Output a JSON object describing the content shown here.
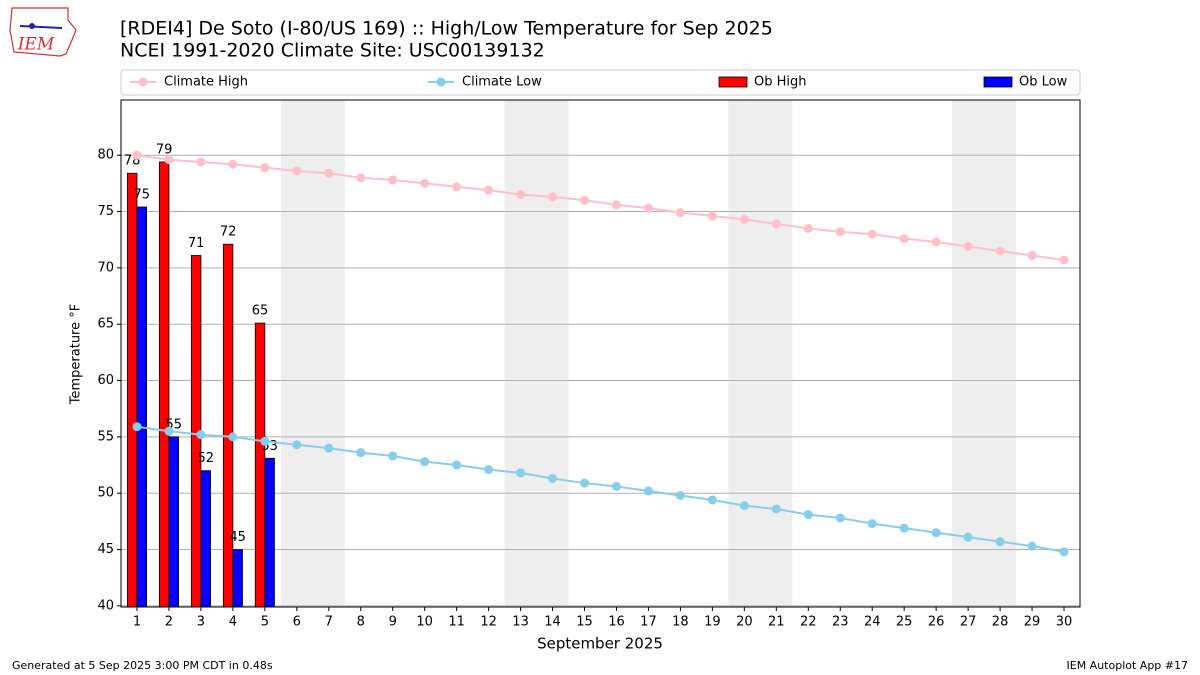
{
  "logo_text": "IEM",
  "footer_left": "Generated at 5 Sep 2025 3:00 PM CDT in 0.48s",
  "footer_right": "IEM Autoplot App #17",
  "chart_data": {
    "type": "bar_line",
    "title": "[RDEI4] De Soto (I-80/US 169) :: High/Low Temperature for Sep 2025",
    "subtitle": "NCEI 1991-2020 Climate Site: USC00139132",
    "xlabel": "September 2025",
    "ylabel": "Temperature °F",
    "x": [
      1,
      2,
      3,
      4,
      5,
      6,
      7,
      8,
      9,
      10,
      11,
      12,
      13,
      14,
      15,
      16,
      17,
      18,
      19,
      20,
      21,
      22,
      23,
      24,
      25,
      26,
      27,
      28,
      29,
      30
    ],
    "xlim": [
      0.5,
      30.5
    ],
    "xticks": [
      1,
      2,
      3,
      4,
      5,
      6,
      7,
      8,
      9,
      10,
      11,
      12,
      13,
      14,
      15,
      16,
      17,
      18,
      19,
      20,
      21,
      22,
      23,
      24,
      25,
      26,
      27,
      28,
      29,
      30
    ],
    "ylim": [
      39.9,
      84.9
    ],
    "yticks": [
      40,
      45,
      50,
      55,
      60,
      65,
      70,
      75,
      80
    ],
    "grid": "y",
    "shaded_spans": [
      [
        5.5,
        7.5
      ],
      [
        12.5,
        14.5
      ],
      [
        19.5,
        21.5
      ],
      [
        26.5,
        28.5
      ]
    ],
    "shade_color": "#eeeeee",
    "series": [
      {
        "name": "Climate High",
        "kind": "line",
        "color": "#ffc0cb",
        "values": [
          80.0,
          79.6,
          79.4,
          79.2,
          78.9,
          78.6,
          78.4,
          78.0,
          77.8,
          77.5,
          77.2,
          76.9,
          76.5,
          76.3,
          76.0,
          75.6,
          75.3,
          74.9,
          74.6,
          74.3,
          73.9,
          73.5,
          73.2,
          73.0,
          72.6,
          72.3,
          71.9,
          71.5,
          71.1,
          70.7
        ]
      },
      {
        "name": "Climate Low",
        "kind": "line",
        "color": "#87ceeb",
        "values": [
          55.9,
          55.5,
          55.2,
          55.0,
          54.6,
          54.3,
          54.0,
          53.6,
          53.3,
          52.8,
          52.5,
          52.1,
          51.8,
          51.3,
          50.9,
          50.6,
          50.2,
          49.8,
          49.4,
          48.9,
          48.6,
          48.1,
          47.8,
          47.3,
          46.9,
          46.5,
          46.1,
          45.7,
          45.3,
          44.8
        ]
      },
      {
        "name": "Ob High",
        "kind": "bar",
        "color": "#ff0000",
        "values": [
          78.4,
          79.4,
          71.1,
          72.1,
          65.1,
          null,
          null,
          null,
          null,
          null,
          null,
          null,
          null,
          null,
          null,
          null,
          null,
          null,
          null,
          null,
          null,
          null,
          null,
          null,
          null,
          null,
          null,
          null,
          null,
          null
        ],
        "value_labels": [
          "78",
          "79",
          "71",
          "72",
          "65",
          null,
          null,
          null,
          null,
          null,
          null,
          null,
          null,
          null,
          null,
          null,
          null,
          null,
          null,
          null,
          null,
          null,
          null,
          null,
          null,
          null,
          null,
          null,
          null,
          null
        ]
      },
      {
        "name": "Ob Low",
        "kind": "bar",
        "color": "#0000ff",
        "values": [
          75.4,
          55.0,
          52.0,
          45.0,
          53.1,
          null,
          null,
          null,
          null,
          null,
          null,
          null,
          null,
          null,
          null,
          null,
          null,
          null,
          null,
          null,
          null,
          null,
          null,
          null,
          null,
          null,
          null,
          null,
          null,
          null
        ],
        "value_labels": [
          "75",
          "55",
          "52",
          "45",
          "53",
          null,
          null,
          null,
          null,
          null,
          null,
          null,
          null,
          null,
          null,
          null,
          null,
          null,
          null,
          null,
          null,
          null,
          null,
          null,
          null,
          null,
          null,
          null,
          null,
          null
        ]
      }
    ]
  }
}
